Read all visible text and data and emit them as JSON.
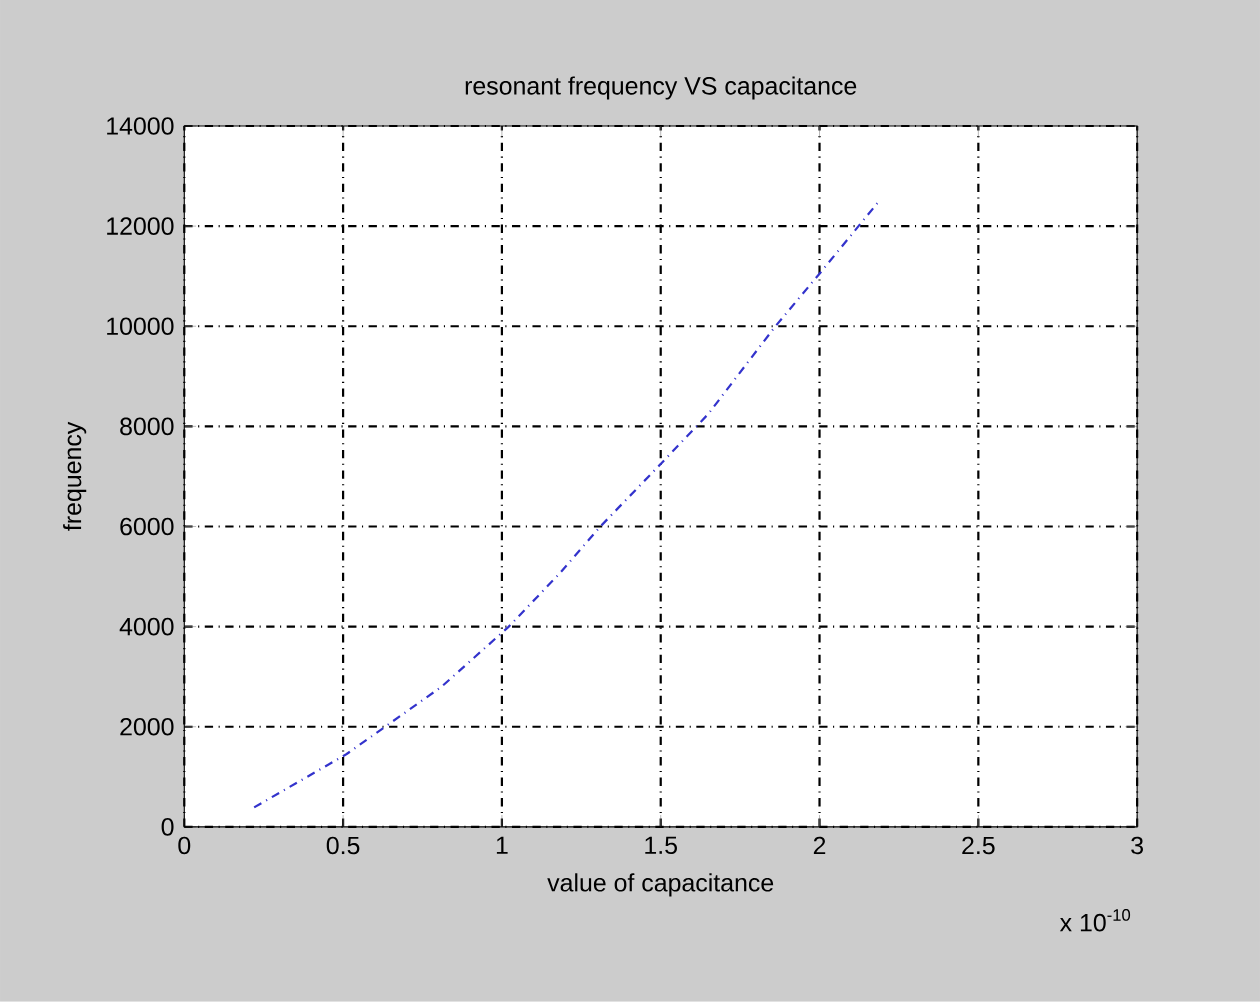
{
  "chart_data": {
    "type": "line",
    "title": "resonant frequency VS capacitance",
    "xlabel": "value of capacitance",
    "ylabel": "frequency",
    "annotations": [
      "x 10$^{-10}$"
    ],
    "x": [
      0.22,
      0.51,
      0.81,
      1.02,
      1.18,
      1.31,
      1.5,
      1.65,
      1.86,
      2.0,
      2.19
    ],
    "series": [
      {
        "color": "#3333cc",
        "values": [
          390,
          1450,
          2800,
          3990,
          5050,
          6000,
          7250,
          8250,
          9990,
          11050,
          12520
        ]
      }
    ],
    "xlim": [
      0,
      3
    ],
    "xticks": [
      0,
      0.5,
      1,
      1.5,
      2,
      2.5,
      3
    ],
    "ylim": [
      0,
      14000
    ],
    "yticks": [
      0,
      2000,
      4000,
      6000,
      8000,
      10000,
      12000,
      14000
    ],
    "grid": true,
    "line_style": "dashed",
    "marker": "none"
  }
}
